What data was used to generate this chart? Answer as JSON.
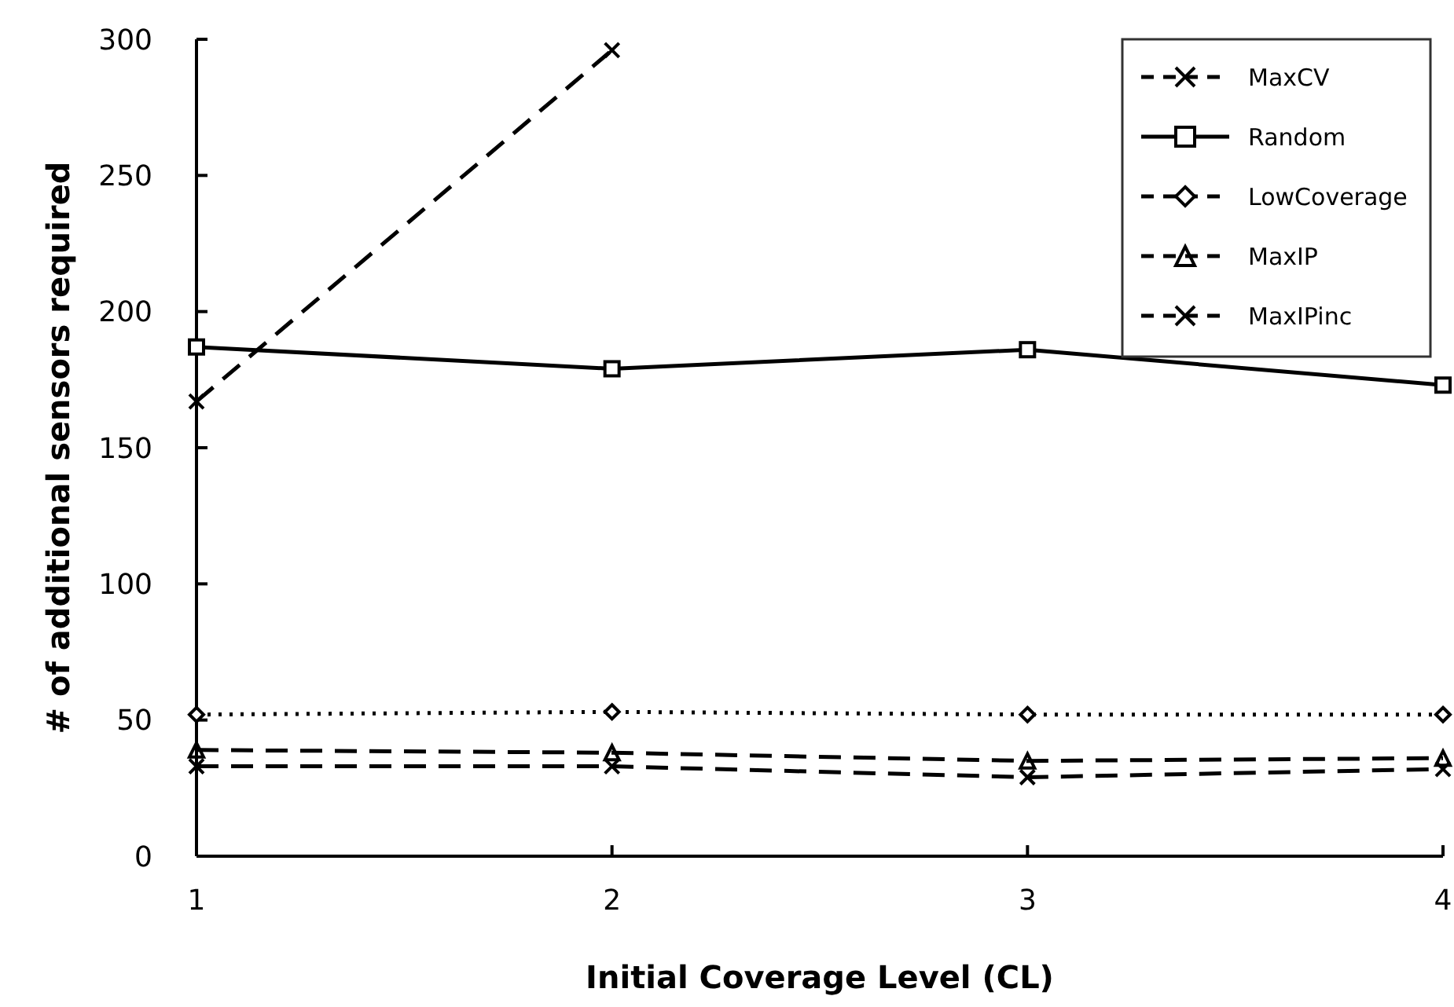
{
  "chart_data": {
    "type": "line",
    "xlabel": "Initial Coverage Level (CL)",
    "ylabel": "# of additional sensors required",
    "x": [
      1,
      2,
      3,
      4
    ],
    "xlim": [
      1,
      4
    ],
    "xticks": [
      1,
      2,
      3,
      4
    ],
    "ylim": [
      0,
      300
    ],
    "yticks": [
      0,
      50,
      100,
      150,
      200,
      250,
      300
    ],
    "grid": false,
    "legend": "top right",
    "series": [
      {
        "name": "MaxCV",
        "color": "#000000",
        "values": [
          167,
          296,
          null,
          null
        ],
        "marker": "cross",
        "line_style": "dashed"
      },
      {
        "name": "Random",
        "color": "#000000",
        "values": [
          187,
          179,
          186,
          173
        ],
        "marker": "square",
        "line_style": "solid"
      },
      {
        "name": "LowCoverage",
        "color": "#000000",
        "values": [
          52,
          53,
          52,
          52
        ],
        "marker": "diamond",
        "line_style": "dotted"
      },
      {
        "name": "MaxIP",
        "color": "#000000",
        "values": [
          39,
          38,
          35,
          36
        ],
        "marker": "triangle",
        "line_style": "dashed"
      },
      {
        "name": "MaxIPinc",
        "color": "#000000",
        "values": [
          33,
          33,
          29,
          32
        ],
        "marker": "cross",
        "line_style": "dashed"
      }
    ]
  }
}
